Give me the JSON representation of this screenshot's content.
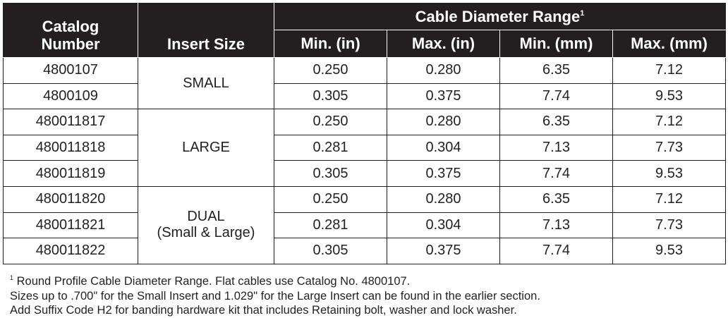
{
  "table": {
    "headers": {
      "catalog": [
        "Catalog",
        "Number"
      ],
      "insert_size": "Insert Size",
      "group": "Cable Diameter Range",
      "group_footnote_mark": "1",
      "sub": [
        "Min. (in)",
        "Max. (in)",
        "Min. (mm)",
        "Max. (mm)"
      ]
    },
    "groups": [
      {
        "insert": [
          "SMALL"
        ],
        "rows": [
          {
            "catalog": "4800107",
            "values": [
              "0.250",
              "0.280",
              "6.35",
              "7.12"
            ]
          },
          {
            "catalog": "4800109",
            "values": [
              "0.305",
              "0.375",
              "7.74",
              "9.53"
            ]
          }
        ]
      },
      {
        "insert": [
          "LARGE"
        ],
        "rows": [
          {
            "catalog": "480011817",
            "values": [
              "0.250",
              "0.280",
              "6.35",
              "7.12"
            ]
          },
          {
            "catalog": "480011818",
            "values": [
              "0.281",
              "0.304",
              "7.13",
              "7.73"
            ]
          },
          {
            "catalog": "480011819",
            "values": [
              "0.305",
              "0.375",
              "7.74",
              "9.53"
            ]
          }
        ]
      },
      {
        "insert": [
          "DUAL",
          "(Small & Large)"
        ],
        "rows": [
          {
            "catalog": "480011820",
            "values": [
              "0.250",
              "0.280",
              "6.35",
              "7.12"
            ]
          },
          {
            "catalog": "480011821",
            "values": [
              "0.281",
              "0.304",
              "7.13",
              "7.73"
            ]
          },
          {
            "catalog": "480011822",
            "values": [
              "0.305",
              "0.375",
              "7.74",
              "9.53"
            ]
          }
        ]
      }
    ]
  },
  "notes": {
    "footnote_mark": "1",
    "footnote": "Round Profile Cable Diameter Range. Flat cables use Catalog No. 4800107.",
    "line2": "Sizes up to .700\" for the Small Insert and 1.029\" for the Large Insert can be found in the earlier section.",
    "line3": "Add Suffix Code H2 for banding hardware kit that includes Retaining bolt, washer and lock washer."
  }
}
